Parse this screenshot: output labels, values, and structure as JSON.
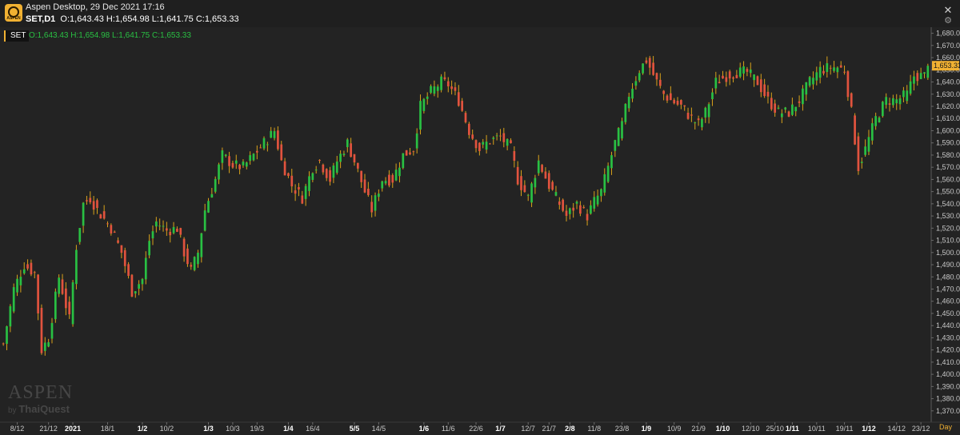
{
  "window": {
    "title": "Aspen Desktop, 29 Dec 2021 17:16",
    "symbol": "SET,D1",
    "ohlc": "O:1,643.43 H:1,654.98 L:1,641.75 C:1,653.33",
    "close_label": "✕",
    "settings_label": "⚙",
    "logo_text": "ASPEN",
    "icons": {
      "logo": "aspen-logo-icon",
      "close": "close-icon",
      "settings": "gear-icon"
    }
  },
  "legend": {
    "symbol": "SET",
    "ohlc": "O:1,643.43 H:1,654.98 L:1,641.75 C:1,653.33"
  },
  "watermark": {
    "brand": "ASPEN",
    "by": "by",
    "maker": "ThaiQuest"
  },
  "period": "Day",
  "colors": {
    "up": "#29c043",
    "down": "#e1533e",
    "wick": "#d8a21a",
    "price_tag": "#f1b132",
    "background": "#232323",
    "axis_text": "#c8c8c8"
  },
  "chart_data": {
    "type": "candlestick",
    "title": "",
    "xlabel": "",
    "ylabel": "",
    "ylim": [
      1362,
      1685
    ],
    "grid": false,
    "last_price": "1,653.33",
    "y_ticks": [
      "1,680.00",
      "1,670.00",
      "1,660.00",
      "1,650.00",
      "1,640.00",
      "1,630.00",
      "1,620.00",
      "1,610.00",
      "1,600.00",
      "1,590.00",
      "1,580.00",
      "1,570.00",
      "1,560.00",
      "1,550.00",
      "1,540.00",
      "1,530.00",
      "1,520.00",
      "1,510.00",
      "1,500.00",
      "1,490.00",
      "1,480.00",
      "1,470.00",
      "1,460.00",
      "1,450.00",
      "1,440.00",
      "1,430.00",
      "1,420.00",
      "1,410.00",
      "1,400.00",
      "1,390.00",
      "1,380.00",
      "1,370.00"
    ],
    "x_ticks": [
      {
        "label": "8/12",
        "bar": 4,
        "bold": false
      },
      {
        "label": "21/12",
        "bar": 13,
        "bold": false
      },
      {
        "label": "2021",
        "bar": 20,
        "bold": true
      },
      {
        "label": "18/1",
        "bar": 30,
        "bold": false
      },
      {
        "label": "1/2",
        "bar": 40,
        "bold": true
      },
      {
        "label": "10/2",
        "bar": 47,
        "bold": false
      },
      {
        "label": "1/3",
        "bar": 59,
        "bold": true
      },
      {
        "label": "10/3",
        "bar": 66,
        "bold": false
      },
      {
        "label": "19/3",
        "bar": 73,
        "bold": false
      },
      {
        "label": "1/4",
        "bar": 82,
        "bold": true
      },
      {
        "label": "16/4",
        "bar": 89,
        "bold": false
      },
      {
        "label": "5/5",
        "bar": 101,
        "bold": true
      },
      {
        "label": "14/5",
        "bar": 108,
        "bold": false
      },
      {
        "label": "1/6",
        "bar": 121,
        "bold": true
      },
      {
        "label": "11/6",
        "bar": 128,
        "bold": false
      },
      {
        "label": "22/6",
        "bar": 136,
        "bold": false
      },
      {
        "label": "1/7",
        "bar": 143,
        "bold": true
      },
      {
        "label": "12/7",
        "bar": 151,
        "bold": false
      },
      {
        "label": "21/7",
        "bar": 157,
        "bold": false
      },
      {
        "label": "2/8",
        "bar": 163,
        "bold": true
      },
      {
        "label": "11/8",
        "bar": 170,
        "bold": false
      },
      {
        "label": "23/8",
        "bar": 178,
        "bold": false
      },
      {
        "label": "1/9",
        "bar": 185,
        "bold": true
      },
      {
        "label": "10/9",
        "bar": 193,
        "bold": false
      },
      {
        "label": "21/9",
        "bar": 200,
        "bold": false
      },
      {
        "label": "1/10",
        "bar": 207,
        "bold": true
      },
      {
        "label": "12/10",
        "bar": 215,
        "bold": false
      },
      {
        "label": "25/10",
        "bar": 222,
        "bold": false
      },
      {
        "label": "1/11",
        "bar": 227,
        "bold": true
      },
      {
        "label": "10/11",
        "bar": 234,
        "bold": false
      },
      {
        "label": "19/11",
        "bar": 242,
        "bold": false
      },
      {
        "label": "1/12",
        "bar": 249,
        "bold": true
      },
      {
        "label": "14/12",
        "bar": 257,
        "bold": false
      },
      {
        "label": "23/12",
        "bar": 264,
        "bold": false
      }
    ],
    "close_anchors": [
      [
        0,
        1425
      ],
      [
        3,
        1470
      ],
      [
        6,
        1490
      ],
      [
        9,
        1483
      ],
      [
        11,
        1420
      ],
      [
        13,
        1430
      ],
      [
        16,
        1480
      ],
      [
        19,
        1445
      ],
      [
        21,
        1505
      ],
      [
        23,
        1540
      ],
      [
        25,
        1545
      ],
      [
        27,
        1535
      ],
      [
        31,
        1520
      ],
      [
        34,
        1500
      ],
      [
        37,
        1468
      ],
      [
        40,
        1478
      ],
      [
        42,
        1510
      ],
      [
        44,
        1525
      ],
      [
        47,
        1518
      ],
      [
        50,
        1520
      ],
      [
        52,
        1500
      ],
      [
        54,
        1485
      ],
      [
        56,
        1500
      ],
      [
        58,
        1535
      ],
      [
        61,
        1560
      ],
      [
        63,
        1580
      ],
      [
        66,
        1572
      ],
      [
        69,
        1570
      ],
      [
        72,
        1580
      ],
      [
        75,
        1590
      ],
      [
        78,
        1600
      ],
      [
        80,
        1575
      ],
      [
        83,
        1555
      ],
      [
        86,
        1545
      ],
      [
        89,
        1570
      ],
      [
        91,
        1575
      ],
      [
        94,
        1560
      ],
      [
        96,
        1575
      ],
      [
        99,
        1590
      ],
      [
        101,
        1575
      ],
      [
        104,
        1550
      ],
      [
        106,
        1535
      ],
      [
        109,
        1560
      ],
      [
        112,
        1560
      ],
      [
        115,
        1580
      ],
      [
        118,
        1585
      ],
      [
        120,
        1620
      ],
      [
        123,
        1632
      ],
      [
        126,
        1640
      ],
      [
        128,
        1638
      ],
      [
        131,
        1625
      ],
      [
        134,
        1600
      ],
      [
        137,
        1585
      ],
      [
        140,
        1592
      ],
      [
        143,
        1595
      ],
      [
        146,
        1585
      ],
      [
        148,
        1560
      ],
      [
        151,
        1545
      ],
      [
        154,
        1575
      ],
      [
        157,
        1555
      ],
      [
        160,
        1540
      ],
      [
        162,
        1530
      ],
      [
        165,
        1540
      ],
      [
        168,
        1530
      ],
      [
        170,
        1542
      ],
      [
        172,
        1550
      ],
      [
        174,
        1570
      ],
      [
        176,
        1590
      ],
      [
        178,
        1605
      ],
      [
        180,
        1630
      ],
      [
        183,
        1650
      ],
      [
        185,
        1658
      ],
      [
        188,
        1640
      ],
      [
        190,
        1630
      ],
      [
        192,
        1625
      ],
      [
        195,
        1620
      ],
      [
        198,
        1610
      ],
      [
        200,
        1605
      ],
      [
        202,
        1615
      ],
      [
        205,
        1640
      ],
      [
        208,
        1645
      ],
      [
        211,
        1648
      ],
      [
        214,
        1648
      ],
      [
        217,
        1640
      ],
      [
        220,
        1625
      ],
      [
        223,
        1615
      ],
      [
        226,
        1615
      ],
      [
        229,
        1625
      ],
      [
        232,
        1640
      ],
      [
        235,
        1650
      ],
      [
        238,
        1652
      ],
      [
        240,
        1652
      ],
      [
        242,
        1650
      ],
      [
        244,
        1615
      ],
      [
        246,
        1570
      ],
      [
        248,
        1585
      ],
      [
        251,
        1610
      ],
      [
        254,
        1625
      ],
      [
        257,
        1625
      ],
      [
        260,
        1630
      ],
      [
        262,
        1645
      ],
      [
        265,
        1645
      ],
      [
        266,
        1653.33
      ]
    ],
    "series_count": 267,
    "last_bar": {
      "open": 1643.43,
      "high": 1654.98,
      "low": 1641.75,
      "close": 1653.33
    }
  }
}
